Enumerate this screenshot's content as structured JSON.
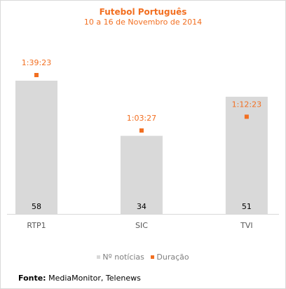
{
  "chart_data": {
    "type": "bar",
    "title": "Futebol Português",
    "subtitle": "10 a 16 de Novembro de 2014",
    "categories": [
      "RTP1",
      "SIC",
      "TVI"
    ],
    "series": [
      {
        "name": "Nº notícias",
        "type": "bar",
        "values": [
          58,
          34,
          51
        ],
        "color": "#d9d9d9"
      },
      {
        "name": "Duração",
        "type": "marker",
        "values": [
          "1:39:23",
          "1:03:27",
          "1:12:23"
        ],
        "seconds": [
          5963,
          3807,
          4343
        ],
        "color": "#f26f21"
      }
    ],
    "grid": false,
    "legend_position": "bottom"
  },
  "source": {
    "label": "Fonte:",
    "text": "MediaMonitor, Telenews"
  },
  "colors": {
    "accent": "#f26f21",
    "bar": "#d9d9d9",
    "axis_text": "#595959"
  }
}
